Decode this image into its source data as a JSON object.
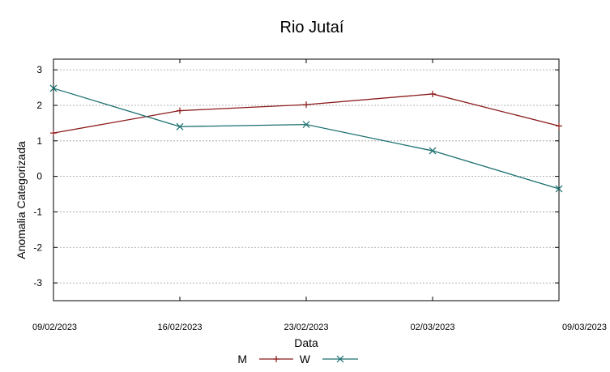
{
  "chart_data": {
    "type": "line",
    "title": "Rio Jutaí",
    "xlabel": "Data",
    "ylabel": "Anomalia Categorizada",
    "categories": [
      "09/02/2023",
      "16/02/2023",
      "23/02/2023",
      "02/03/2023",
      "09/03/2023"
    ],
    "ylim": [
      -3.5,
      3.3
    ],
    "yticks": [
      -3,
      -2,
      -1,
      0,
      1,
      2,
      3
    ],
    "grid": true,
    "legend_position": "bottom-center",
    "series": [
      {
        "name": "M",
        "values": [
          1.22,
          1.85,
          2.02,
          2.32,
          1.42
        ],
        "color": "#8b1a1a",
        "marker": "plus"
      },
      {
        "name": "W",
        "values": [
          2.48,
          1.4,
          1.46,
          0.72,
          -0.35
        ],
        "color": "#1a6e6e",
        "marker": "cross"
      }
    ]
  }
}
